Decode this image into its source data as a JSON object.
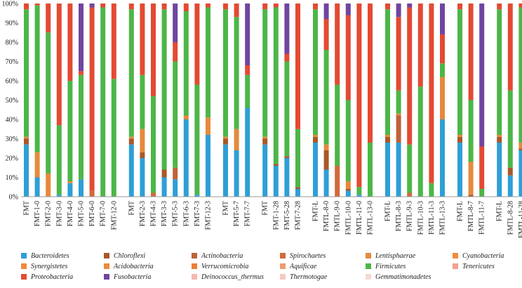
{
  "chart_data": {
    "type": "bar",
    "stacked": true,
    "ylim": [
      0,
      100
    ],
    "y_ticks": [
      "0%",
      "10%",
      "20%",
      "30%",
      "40%",
      "50%",
      "60%",
      "70%",
      "80%",
      "90%",
      "100%"
    ],
    "groups": [
      [
        "FMT",
        "FMT-1-0",
        "FMT-2-0",
        "FMT-3-0",
        "FMT-4-0",
        "FMT-5-0",
        "FMT-6-0",
        "FMT-7-0",
        "FMT-12-0"
      ],
      [
        "FMT",
        "FMT-2-3",
        "FMT-4-3",
        "FMT-3-3",
        "FMT-5-3",
        "FMT-6-3",
        "FMT-7-3",
        "FMT-12-3"
      ],
      [
        "FMT",
        "FMT-5-7",
        "FMT-7-7"
      ],
      [
        "FMT",
        "FMT-1-28",
        "FMT-5-28",
        "FMT-7-28"
      ],
      [
        "FMT-L",
        "FMTL-8-0",
        "FMTL-9-0",
        "FMTL-10-0",
        "FMTL-11-0",
        "FMTL-13-0"
      ],
      [
        "FMT-L",
        "FMTL-8-3",
        "FMTL-9-3",
        "FMTL-10-3",
        "FMTL-11-3",
        "FMTL-13-3"
      ],
      [
        "FMT-L",
        "FMTL-8-7",
        "FMTL-11-7"
      ],
      [
        "FMT-L",
        "FMTL-8-28",
        "FMTL-11-28"
      ]
    ],
    "legend": [
      {
        "name": "Bacteroidetes",
        "color": "#2e9fd6"
      },
      {
        "name": "Chloroflexi",
        "color": "#a8582a"
      },
      {
        "name": "Actinobacteria",
        "color": "#c0613a"
      },
      {
        "name": "Spirochaetes",
        "color": "#d2693a"
      },
      {
        "name": "Lentisphaerae",
        "color": "#e58a3c"
      },
      {
        "name": "Cyanobacteria",
        "color": "#f08a3e"
      },
      {
        "name": "Synergistetes",
        "color": "#f0883c"
      },
      {
        "name": "Acidobacteria",
        "color": "#ee8a3a"
      },
      {
        "name": "Verrucomicrobia",
        "color": "#ec7e34"
      },
      {
        "name": "Aquificae",
        "color": "#ef9a70"
      },
      {
        "name": "Firmicutes",
        "color": "#4cb648"
      },
      {
        "name": "Tenericutes",
        "color": "#f2a090"
      },
      {
        "name": "Proteobacteria",
        "color": "#e34a33"
      },
      {
        "name": "Fusobacteria",
        "color": "#7045a0"
      },
      {
        "name": "Deinococcus_thermus",
        "color": "#f3b8b0"
      },
      {
        "name": "Thermotogae",
        "color": "#f6c9c2"
      },
      {
        "name": "Gemmatimonadetes",
        "color": "#f7d9d3"
      }
    ],
    "bar_segments": [
      [
        {
          "p": "Bacteroidetes",
          "v": 27
        },
        {
          "p": "Chloroflexi",
          "v": 3
        },
        {
          "p": "Lentisphaerae",
          "v": 1
        },
        {
          "p": "Firmicutes",
          "v": 66
        },
        {
          "p": "Proteobacteria",
          "v": 3
        }
      ],
      [
        {
          "p": "Bacteroidetes",
          "v": 10
        },
        {
          "p": "Lentisphaerae",
          "v": 13
        },
        {
          "p": "Firmicutes",
          "v": 76
        },
        {
          "p": "Proteobacteria",
          "v": 1
        }
      ],
      [
        {
          "p": "Lentisphaerae",
          "v": 12
        },
        {
          "p": "Firmicutes",
          "v": 73
        },
        {
          "p": "Proteobacteria",
          "v": 15
        }
      ],
      [
        {
          "p": "Bacteroidetes",
          "v": 1
        },
        {
          "p": "Firmicutes",
          "v": 36
        },
        {
          "p": "Proteobacteria",
          "v": 63
        }
      ],
      [
        {
          "p": "Bacteroidetes",
          "v": 7
        },
        {
          "p": "Lentisphaerae",
          "v": 1
        },
        {
          "p": "Firmicutes",
          "v": 52
        },
        {
          "p": "Proteobacteria",
          "v": 40
        }
      ],
      [
        {
          "p": "Bacteroidetes",
          "v": 9
        },
        {
          "p": "Firmicutes",
          "v": 54
        },
        {
          "p": "Proteobacteria",
          "v": 2
        },
        {
          "p": "Fusobacteria",
          "v": 35
        }
      ],
      [
        {
          "p": "Spirochaetes",
          "v": 3
        },
        {
          "p": "Proteobacteria",
          "v": 95
        },
        {
          "p": "Fusobacteria",
          "v": 2
        }
      ],
      [
        {
          "p": "Firmicutes",
          "v": 98
        },
        {
          "p": "Proteobacteria",
          "v": 2
        }
      ],
      [
        {
          "p": "Firmicutes",
          "v": 61
        },
        {
          "p": "Proteobacteria",
          "v": 39
        }
      ],
      [
        {
          "p": "Bacteroidetes",
          "v": 27
        },
        {
          "p": "Chloroflexi",
          "v": 3
        },
        {
          "p": "Lentisphaerae",
          "v": 1
        },
        {
          "p": "Firmicutes",
          "v": 66
        },
        {
          "p": "Proteobacteria",
          "v": 3
        }
      ],
      [
        {
          "p": "Bacteroidetes",
          "v": 20
        },
        {
          "p": "Chloroflexi",
          "v": 3
        },
        {
          "p": "Lentisphaerae",
          "v": 12
        },
        {
          "p": "Firmicutes",
          "v": 28
        },
        {
          "p": "Proteobacteria",
          "v": 37
        }
      ],
      [
        {
          "p": "Spirochaetes",
          "v": 2
        },
        {
          "p": "Firmicutes",
          "v": 50
        },
        {
          "p": "Proteobacteria",
          "v": 48
        }
      ],
      [
        {
          "p": "Bacteroidetes",
          "v": 10
        },
        {
          "p": "Chloroflexi",
          "v": 4
        },
        {
          "p": "Firmicutes",
          "v": 83
        },
        {
          "p": "Proteobacteria",
          "v": 3
        }
      ],
      [
        {
          "p": "Bacteroidetes",
          "v": 9
        },
        {
          "p": "Actinobacteria",
          "v": 6
        },
        {
          "p": "Firmicutes",
          "v": 55
        },
        {
          "p": "Proteobacteria",
          "v": 10
        },
        {
          "p": "Fusobacteria",
          "v": 20
        }
      ],
      [
        {
          "p": "Bacteroidetes",
          "v": 40
        },
        {
          "p": "Lentisphaerae",
          "v": 2
        },
        {
          "p": "Firmicutes",
          "v": 54
        },
        {
          "p": "Proteobacteria",
          "v": 4
        }
      ],
      [
        {
          "p": "Bacteroidetes",
          "v": 1
        },
        {
          "p": "Firmicutes",
          "v": 57
        },
        {
          "p": "Proteobacteria",
          "v": 42
        }
      ],
      [
        {
          "p": "Bacteroidetes",
          "v": 32
        },
        {
          "p": "Lentisphaerae",
          "v": 9
        },
        {
          "p": "Firmicutes",
          "v": 57
        },
        {
          "p": "Proteobacteria",
          "v": 2
        }
      ],
      [
        {
          "p": "Bacteroidetes",
          "v": 27
        },
        {
          "p": "Chloroflexi",
          "v": 3
        },
        {
          "p": "Lentisphaerae",
          "v": 1
        },
        {
          "p": "Firmicutes",
          "v": 66
        },
        {
          "p": "Proteobacteria",
          "v": 3
        }
      ],
      [
        {
          "p": "Bacteroidetes",
          "v": 24
        },
        {
          "p": "Lentisphaerae",
          "v": 11
        },
        {
          "p": "Firmicutes",
          "v": 58
        },
        {
          "p": "Proteobacteria",
          "v": 7
        }
      ],
      [
        {
          "p": "Bacteroidetes",
          "v": 46
        },
        {
          "p": "Firmicutes",
          "v": 17
        },
        {
          "p": "Proteobacteria",
          "v": 5
        },
        {
          "p": "Fusobacteria",
          "v": 32
        }
      ],
      [
        {
          "p": "Bacteroidetes",
          "v": 27
        },
        {
          "p": "Chloroflexi",
          "v": 3
        },
        {
          "p": "Lentisphaerae",
          "v": 1
        },
        {
          "p": "Firmicutes",
          "v": 66
        },
        {
          "p": "Proteobacteria",
          "v": 3
        }
      ],
      [
        {
          "p": "Bacteroidetes",
          "v": 16
        },
        {
          "p": "Chloroflexi",
          "v": 1
        },
        {
          "p": "Firmicutes",
          "v": 81
        },
        {
          "p": "Proteobacteria",
          "v": 2
        }
      ],
      [
        {
          "p": "Bacteroidetes",
          "v": 20
        },
        {
          "p": "Chloroflexi",
          "v": 1
        },
        {
          "p": "Firmicutes",
          "v": 49
        },
        {
          "p": "Proteobacteria",
          "v": 4
        },
        {
          "p": "Fusobacteria",
          "v": 26
        }
      ],
      [
        {
          "p": "Bacteroidetes",
          "v": 4
        },
        {
          "p": "Chloroflexi",
          "v": 1
        },
        {
          "p": "Firmicutes",
          "v": 30
        },
        {
          "p": "Proteobacteria",
          "v": 65
        }
      ],
      [
        {
          "p": "Bacteroidetes",
          "v": 28
        },
        {
          "p": "Chloroflexi",
          "v": 3
        },
        {
          "p": "Lentisphaerae",
          "v": 1
        },
        {
          "p": "Firmicutes",
          "v": 65
        },
        {
          "p": "Proteobacteria",
          "v": 3
        }
      ],
      [
        {
          "p": "Bacteroidetes",
          "v": 14
        },
        {
          "p": "Chloroflexi",
          "v": 10
        },
        {
          "p": "Lentisphaerae",
          "v": 3
        },
        {
          "p": "Firmicutes",
          "v": 49
        },
        {
          "p": "Proteobacteria",
          "v": 16
        },
        {
          "p": "Fusobacteria",
          "v": 8
        }
      ],
      [
        {
          "p": "Spirochaetes",
          "v": 16
        },
        {
          "p": "Firmicutes",
          "v": 42
        },
        {
          "p": "Proteobacteria",
          "v": 42
        }
      ],
      [
        {
          "p": "Bacteroidetes",
          "v": 3
        },
        {
          "p": "Chloroflexi",
          "v": 1
        },
        {
          "p": "Lentisphaerae",
          "v": 4
        },
        {
          "p": "Firmicutes",
          "v": 42
        },
        {
          "p": "Proteobacteria",
          "v": 44
        },
        {
          "p": "Fusobacteria",
          "v": 6
        }
      ],
      [
        {
          "p": "Bacteroidetes",
          "v": 1
        },
        {
          "p": "Firmicutes",
          "v": 4
        },
        {
          "p": "Proteobacteria",
          "v": 95
        }
      ],
      [
        {
          "p": "Firmicutes",
          "v": 28
        },
        {
          "p": "Proteobacteria",
          "v": 72
        }
      ],
      [
        {
          "p": "Bacteroidetes",
          "v": 28
        },
        {
          "p": "Chloroflexi",
          "v": 3
        },
        {
          "p": "Lentisphaerae",
          "v": 1
        },
        {
          "p": "Firmicutes",
          "v": 65
        },
        {
          "p": "Proteobacteria",
          "v": 3
        }
      ],
      [
        {
          "p": "Bacteroidetes",
          "v": 28
        },
        {
          "p": "Actinobacteria",
          "v": 14
        },
        {
          "p": "Lentisphaerae",
          "v": 1
        },
        {
          "p": "Firmicutes",
          "v": 12
        },
        {
          "p": "Proteobacteria",
          "v": 38
        },
        {
          "p": "Fusobacteria",
          "v": 7
        }
      ],
      [
        {
          "p": "Spirochaetes",
          "v": 2
        },
        {
          "p": "Firmicutes",
          "v": 25
        },
        {
          "p": "Proteobacteria",
          "v": 71
        },
        {
          "p": "Fusobacteria",
          "v": 2
        }
      ],
      [
        {
          "p": "Firmicutes",
          "v": 57
        },
        {
          "p": "Proteobacteria",
          "v": 43
        }
      ],
      [
        {
          "p": "Firmicutes",
          "v": 7
        },
        {
          "p": "Proteobacteria",
          "v": 93
        }
      ],
      [
        {
          "p": "Bacteroidetes",
          "v": 40
        },
        {
          "p": "Lentisphaerae",
          "v": 22
        },
        {
          "p": "Firmicutes",
          "v": 7
        },
        {
          "p": "Proteobacteria",
          "v": 15
        },
        {
          "p": "Fusobacteria",
          "v": 16
        }
      ],
      [
        {
          "p": "Bacteroidetes",
          "v": 28
        },
        {
          "p": "Chloroflexi",
          "v": 3
        },
        {
          "p": "Lentisphaerae",
          "v": 1
        },
        {
          "p": "Firmicutes",
          "v": 65
        },
        {
          "p": "Proteobacteria",
          "v": 3
        }
      ],
      [
        {
          "p": "Chloroflexi",
          "v": 1
        },
        {
          "p": "Lentisphaerae",
          "v": 17
        },
        {
          "p": "Firmicutes",
          "v": 32
        },
        {
          "p": "Proteobacteria",
          "v": 50
        }
      ],
      [
        {
          "p": "Firmicutes",
          "v": 4
        },
        {
          "p": "Proteobacteria",
          "v": 22
        },
        {
          "p": "Fusobacteria",
          "v": 74
        }
      ],
      [
        {
          "p": "Bacteroidetes",
          "v": 28
        },
        {
          "p": "Chloroflexi",
          "v": 3
        },
        {
          "p": "Lentisphaerae",
          "v": 1
        },
        {
          "p": "Firmicutes",
          "v": 65
        },
        {
          "p": "Proteobacteria",
          "v": 3
        }
      ],
      [
        {
          "p": "Bacteroidetes",
          "v": 11
        },
        {
          "p": "Chloroflexi",
          "v": 4
        },
        {
          "p": "Firmicutes",
          "v": 40
        },
        {
          "p": "Proteobacteria",
          "v": 45
        }
      ],
      [
        {
          "p": "Bacteroidetes",
          "v": 24
        },
        {
          "p": "Chloroflexi",
          "v": 1
        },
        {
          "p": "Lentisphaerae",
          "v": 3
        },
        {
          "p": "Firmicutes",
          "v": 70
        },
        {
          "p": "Proteobacteria",
          "v": 2
        }
      ]
    ]
  }
}
